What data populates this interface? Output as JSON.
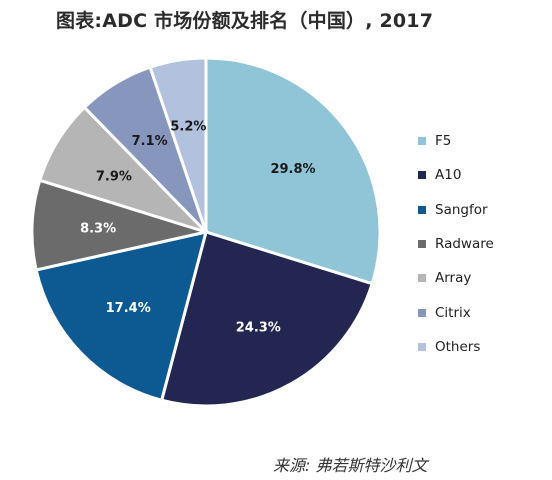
{
  "chart_data": {
    "type": "pie",
    "title": "图表:ADC 市场份额及排名（中国）, 2017",
    "slices": [
      {
        "name": "F5",
        "value": 29.8,
        "label": "29.8%",
        "color": "#8fc5d6",
        "label_color": "#1a1a1a"
      },
      {
        "name": "A10",
        "value": 24.3,
        "label": "24.3%",
        "color": "#232651",
        "label_color": "#ffffff"
      },
      {
        "name": "Sangfor",
        "value": 17.4,
        "label": "17.4%",
        "color": "#0d5a92",
        "label_color": "#ffffff"
      },
      {
        "name": "Radware",
        "value": 8.3,
        "label": "8.3%",
        "color": "#6b6b6c",
        "label_color": "#ffffff"
      },
      {
        "name": "Array",
        "value": 7.9,
        "label": "7.9%",
        "color": "#b5b5b5",
        "label_color": "#1a1a1a"
      },
      {
        "name": "Citrix",
        "value": 7.1,
        "label": "7.1%",
        "color": "#8796bd",
        "label_color": "#1a1a1a"
      },
      {
        "name": "Others",
        "value": 5.2,
        "label": "5.2%",
        "color": "#b2c1dd",
        "label_color": "#1a1a1a"
      }
    ],
    "legend_position": "right"
  },
  "source": "来源: 弗若斯特沙利文"
}
